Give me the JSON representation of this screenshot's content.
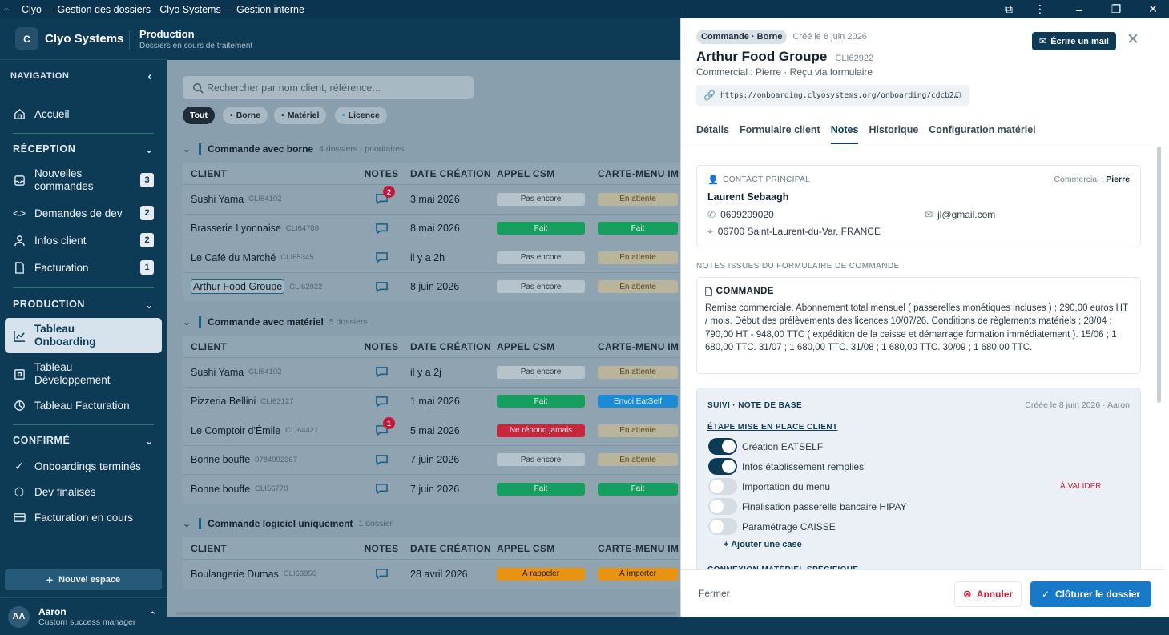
{
  "window": {
    "title": "Clyo — Gestion des dossiers - Clyo Systems — Gestion interne"
  },
  "brand": {
    "logo": "C",
    "name": "Clyo Systems"
  },
  "nav": {
    "label": "NAVIGATION",
    "home": "Accueil"
  },
  "sections": {
    "reception": {
      "title": "RÉCEPTION",
      "items": [
        {
          "label": "Nouvelles commandes",
          "count": "3",
          "icon": "inbox-icon"
        },
        {
          "label": "Demandes de dev",
          "count": "2",
          "icon": "code-icon"
        },
        {
          "label": "Infos client",
          "count": "2",
          "icon": "user-icon"
        },
        {
          "label": "Facturation",
          "count": "1",
          "icon": "file-icon"
        }
      ]
    },
    "production": {
      "title": "PRODUCTION",
      "items": [
        {
          "label": "Tableau Onboarding",
          "icon": "chart-line-icon"
        },
        {
          "label": "Tableau Développement",
          "icon": "dev-board-icon"
        },
        {
          "label": "Tableau Facturation",
          "icon": "billing-icon"
        }
      ]
    },
    "confirme": {
      "title": "CONFIRMÉ",
      "items": [
        {
          "label": "Onboardings terminés",
          "icon": "check-icon"
        },
        {
          "label": "Dev finalisés",
          "icon": "hexagon-icon"
        },
        {
          "label": "Facturation en cours",
          "icon": "card-icon"
        }
      ]
    }
  },
  "sidebar": {
    "new_space": "Nouvel espace"
  },
  "user": {
    "initials": "AA",
    "name": "Aaron",
    "role": "Custom success manager"
  },
  "header": {
    "title": "Production",
    "subtitle": "Dossiers en cours de traitement"
  },
  "search": {
    "placeholder": "Rechercher par nom client, référence..."
  },
  "filters": [
    "Tout",
    "Borne",
    "Matériel",
    "Licence"
  ],
  "columns": {
    "client": "CLIENT",
    "notes": "NOTES",
    "date": "DATE CRÉATION",
    "csm": "APPEL CSM",
    "menu": "CARTE-MENU IM"
  },
  "groups": [
    {
      "title": "Commande avec borne",
      "meta": "4 dossiers · prioritaires",
      "rows": [
        {
          "client": "Sushi Yama",
          "ref": "CLI64102",
          "badge": "2",
          "date": "3 mai 2026",
          "csm": "Pas encore",
          "menu": "En attente"
        },
        {
          "client": "Brasserie Lyonnaise",
          "ref": "CLI64789",
          "badge": "",
          "date": "8 mai 2026",
          "csm": "Fait",
          "menu": "Fait"
        },
        {
          "client": "Le Café du Marché",
          "ref": "CLI65345",
          "badge": "",
          "date": "il y a 2h",
          "csm": "Pas encore",
          "menu": "En attente"
        },
        {
          "client": "Arthur Food Groupe",
          "ref": "CLI62922",
          "badge": "",
          "date": "8 juin 2026",
          "csm": "Pas encore",
          "menu": "En attente"
        }
      ]
    },
    {
      "title": "Commande avec matériel",
      "meta": "5 dossiers",
      "rows": [
        {
          "client": "Sushi Yama",
          "ref": "CLI64102",
          "badge": "",
          "date": "il y a 2j",
          "csm": "Pas encore",
          "menu": "En attente"
        },
        {
          "client": "Pizzeria Bellini",
          "ref": "CLI63127",
          "badge": "",
          "date": "1 mai 2026",
          "csm": "Fait",
          "menu": "Envoi EatSelf"
        },
        {
          "client": "Le Comptoir d'Émile",
          "ref": "CLI64421",
          "badge": "1",
          "date": "5 mai 2026",
          "csm": "Ne répond jamais",
          "menu": "En attente"
        },
        {
          "client": "Bonne bouffe",
          "ref": "0784992367",
          "badge": "",
          "date": "7 juin 2026",
          "csm": "Pas encore",
          "menu": "En attente"
        },
        {
          "client": "Bonne bouffe",
          "ref": "CLI56778",
          "badge": "",
          "date": "7 juin 2026",
          "csm": "Fait",
          "menu": "Fait"
        }
      ]
    },
    {
      "title": "Commande logiciel uniquement",
      "meta": "1 dossier",
      "rows": [
        {
          "client": "Boulangerie Dumas",
          "ref": "CLI63856",
          "badge": "",
          "date": "28 avril 2026",
          "csm": "À rappeler",
          "menu": "À importer"
        }
      ]
    }
  ],
  "panel": {
    "tag": "Commande · Borne",
    "created": "Créé le 8 juin 2026",
    "mail_btn": "Écrire un mail",
    "name": "Arthur Food Groupe",
    "ref": "CLI62922",
    "sub": "Commercial : Pierre · Reçu via formulaire",
    "link": "https://onboarding.clyosystems.org/onboarding/cdcb2…",
    "tabs": [
      "Détails",
      "Formulaire client",
      "Notes",
      "Historique",
      "Configuration matériel"
    ],
    "contact": {
      "label": "CONTACT PRINCIPAL",
      "commercial_label": "Commercial :",
      "commercial": "Pierre",
      "name": "Laurent Sebaagh",
      "phone": "0699209020",
      "email": "jl@gmail.com",
      "address": "06700 Saint-Laurent-du-Var, FRANCE"
    },
    "notes_label": "NOTES ISSUES DU FORMULAIRE DE COMMANDE",
    "commande": {
      "title": "COMMANDE",
      "text": "Remise commerciale. Abonnement total mensuel ( passerelles monétiques incluses ) ; 290,00 euros HT / mois. Début des prélèvements des licences 10/07/26. Conditions de règlements matériels ; 28/04 ; 790,00 HT - 948,00 TTC ( expédition de la caisse et démarrage formation immédiatement ). 15/06 ; 1 680,00 TTC. 31/07 ; 1 680,00 TTC. 31/08 ; 1 680,00 TTC. 30/09 ; 1 680,00 TTC."
    },
    "suivi": {
      "title": "SUIVI · NOTE DE BASE",
      "meta": "Créée le 8 juin 2026 · Aaron",
      "step_title": "ÉTAPE MISE EN PLACE CLIENT",
      "steps": [
        {
          "label": "Création EATSELF",
          "on": true,
          "flag": ""
        },
        {
          "label": "Infos établissement remplies",
          "on": true,
          "flag": ""
        },
        {
          "label": "Importation du menu",
          "on": false,
          "flag": "À VALIDER"
        },
        {
          "label": "Finalisation passerelle bancaire HIPAY",
          "on": false,
          "flag": ""
        },
        {
          "label": "Paramétrage CAISSE",
          "on": false,
          "flag": ""
        }
      ],
      "add": "+ Ajouter une case",
      "next": "CONNEXION MATÉRIEL SPÉCIFIQUE"
    },
    "footer": {
      "close": "Fermer",
      "cancel": "Annuler",
      "submit": "Clôturer le dossier"
    }
  },
  "colors": {
    "navy": "#0d3a55",
    "green": "#159e5d",
    "red": "#c8263c",
    "orange": "#e89412",
    "blue": "#1b8bd6"
  }
}
